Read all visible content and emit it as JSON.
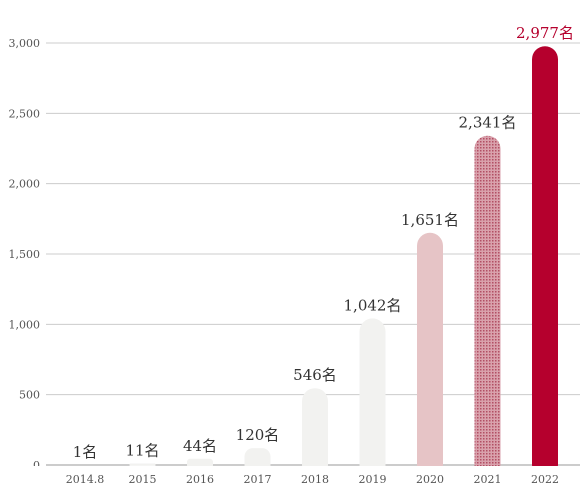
{
  "chart_data": {
    "type": "bar",
    "title": "",
    "xlabel": "",
    "ylabel": "",
    "categories": [
      "2014.8",
      "2015",
      "2016",
      "2017",
      "2018",
      "2019",
      "2020",
      "2021",
      "2022"
    ],
    "values": [
      1,
      11,
      44,
      120,
      546,
      1042,
      1651,
      2341,
      2977
    ],
    "value_labels": [
      "1名",
      "11名",
      "44名",
      "120名",
      "546名",
      "1,042名",
      "1,651名",
      "2,341名",
      "2,977名"
    ],
    "y_ticks": [
      0,
      500,
      1000,
      1500,
      2000,
      2500,
      3000
    ],
    "y_tick_labels": [
      "0",
      "500",
      "1,000",
      "1,500",
      "2,000",
      "2,500",
      "3,000"
    ],
    "ylim": [
      0,
      3000
    ],
    "grid": true,
    "colors": {
      "light_bar": "#f2f2f0",
      "pink_bar": "#e6c4c6",
      "pattern_bar": "#c97e8c",
      "highlight_bar": "#b5002d",
      "highlight_text": "#b5002d",
      "grid": "#cccccc"
    }
  }
}
